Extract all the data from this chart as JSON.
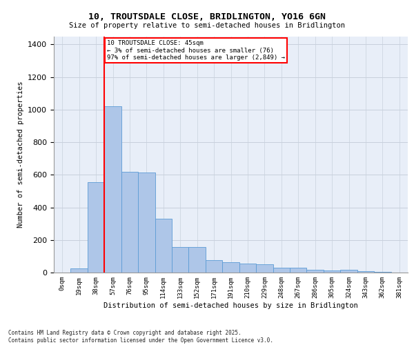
{
  "title_line1": "10, TROUTSDALE CLOSE, BRIDLINGTON, YO16 6GN",
  "title_line2": "Size of property relative to semi-detached houses in Bridlington",
  "xlabel": "Distribution of semi-detached houses by size in Bridlington",
  "ylabel": "Number of semi-detached properties",
  "footer": "Contains HM Land Registry data © Crown copyright and database right 2025.\nContains public sector information licensed under the Open Government Licence v3.0.",
  "bin_labels": [
    "0sqm",
    "19sqm",
    "38sqm",
    "57sqm",
    "76sqm",
    "95sqm",
    "114sqm",
    "133sqm",
    "152sqm",
    "171sqm",
    "191sqm",
    "210sqm",
    "229sqm",
    "248sqm",
    "267sqm",
    "286sqm",
    "305sqm",
    "324sqm",
    "343sqm",
    "362sqm",
    "381sqm"
  ],
  "bar_values": [
    0,
    25,
    555,
    1020,
    620,
    615,
    330,
    155,
    155,
    75,
    65,
    55,
    50,
    28,
    28,
    18,
    12,
    18,
    8,
    5,
    0
  ],
  "bar_color": "#aec6e8",
  "bar_edge_color": "#5b9bd5",
  "background_color": "#e8eef8",
  "grid_color": "#c8d0dc",
  "annotation_text": "10 TROUTSDALE CLOSE: 45sqm\n← 3% of semi-detached houses are smaller (76)\n97% of semi-detached houses are larger (2,849) →",
  "red_line_x": 2.5,
  "ylim": [
    0,
    1450
  ],
  "yticks": [
    0,
    200,
    400,
    600,
    800,
    1000,
    1200,
    1400
  ],
  "figsize": [
    6.0,
    5.0
  ],
  "dpi": 100
}
